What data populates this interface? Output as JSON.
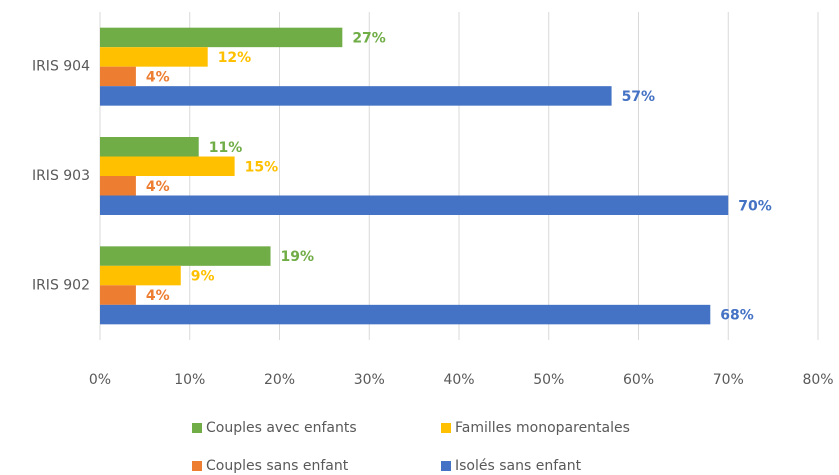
{
  "chart_data": {
    "type": "bar",
    "orientation": "horizontal",
    "categories": [
      "IRIS 904",
      "IRIS 903",
      "IRIS 902"
    ],
    "series": [
      {
        "name": "Couples avec enfants",
        "color": "#70ad47",
        "values": [
          27,
          11,
          19
        ],
        "value_labels": [
          "27%",
          "11%",
          "19%"
        ]
      },
      {
        "name": "Familles monoparentales",
        "color": "#ffc000",
        "values": [
          12,
          15,
          9
        ],
        "value_labels": [
          "12%",
          "15%",
          "9%"
        ]
      },
      {
        "name": "Couples sans enfant",
        "color": "#ed7d31",
        "values": [
          4,
          4,
          4
        ],
        "value_labels": [
          "4%",
          "4%",
          "4%"
        ]
      },
      {
        "name": "Isolés sans enfant",
        "color": "#4472c4",
        "values": [
          57,
          70,
          68
        ],
        "value_labels": [
          "57%",
          "70%",
          "68%"
        ]
      }
    ],
    "xlim": [
      0,
      80
    ],
    "xticks": [
      {
        "value": 0,
        "label": "0%"
      },
      {
        "value": 10,
        "label": "10%"
      },
      {
        "value": 20,
        "label": "20%"
      },
      {
        "value": 30,
        "label": "30%"
      },
      {
        "value": 40,
        "label": "40%"
      },
      {
        "value": 50,
        "label": "50%"
      },
      {
        "value": 60,
        "label": "60%"
      },
      {
        "value": 70,
        "label": "70%"
      },
      {
        "value": 80,
        "label": "80%"
      }
    ],
    "grid": true,
    "legend": "bottom"
  }
}
